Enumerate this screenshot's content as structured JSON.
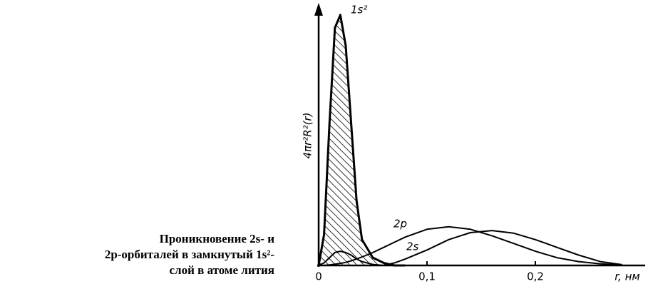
{
  "chart_data": {
    "type": "line",
    "y_label": "4πr²R²(r)",
    "x_label": "r, нм",
    "caption": [
      "Проникновение 2s- и",
      "2p-орбиталей в замкнутый 1s²-",
      "слой в атоме лития"
    ],
    "xlim": [
      0,
      0.3
    ],
    "ylim": [
      0,
      1
    ],
    "xticks": [
      0,
      {
        "value": 0.1,
        "label": "0,1"
      },
      {
        "value": 0.2,
        "label": "0,2"
      }
    ],
    "x": [
      0,
      0.005,
      0.01,
      0.015,
      0.02,
      0.025,
      0.03,
      0.035,
      0.04,
      0.05,
      0.06,
      0.07,
      0.08,
      0.1,
      0.12,
      0.14,
      0.16,
      0.18,
      0.2,
      0.22,
      0.24,
      0.26,
      0.28
    ],
    "series": [
      {
        "name": "1s²",
        "color": "#000000",
        "hatched": true,
        "values": [
          0,
          0.12,
          0.55,
          0.92,
          0.97,
          0.85,
          0.55,
          0.25,
          0.1,
          0.03,
          0.01,
          0,
          0,
          null,
          null,
          null,
          null,
          null,
          null,
          null,
          null,
          null,
          null
        ]
      },
      {
        "name": "2s",
        "color": "#000000",
        "values": [
          0,
          0.01,
          0.03,
          0.05,
          0.055,
          0.05,
          0.04,
          0.025,
          0.015,
          0.004,
          0,
          0.01,
          0.025,
          0.06,
          0.1,
          0.127,
          0.135,
          0.125,
          0.1,
          0.07,
          0.04,
          0.015,
          0.003
        ]
      },
      {
        "name": "2p",
        "color": "#000000",
        "values": [
          0,
          0,
          0.002,
          0.005,
          0.008,
          0.012,
          0.018,
          0.025,
          0.033,
          0.05,
          0.07,
          0.09,
          0.11,
          0.14,
          0.15,
          0.14,
          0.115,
          0.085,
          0.055,
          0.03,
          0.015,
          0.006,
          0.002
        ]
      }
    ]
  }
}
